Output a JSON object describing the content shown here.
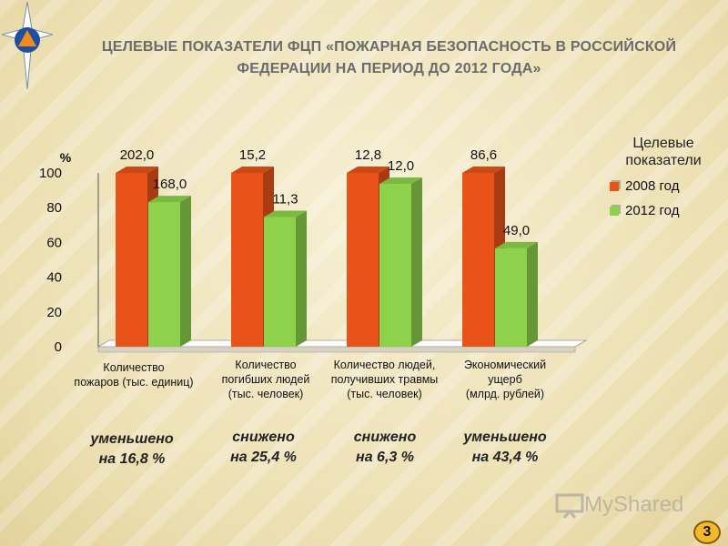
{
  "header": {
    "title_line1": "ЦЕЛЕВЫЕ ПОКАЗАТЕЛИ ФЦП «ПОЖАРНАЯ БЕЗОПАСНОСТЬ В РОССИЙСКОЙ",
    "title_line2": "ФЕДЕРАЦИИ НА ПЕРИОД  ДО 2012 ГОДА»"
  },
  "chart_data": {
    "type": "bar",
    "ylabel": "%",
    "ylim": [
      0,
      100
    ],
    "yticks": [
      "0",
      "20",
      "40",
      "60",
      "80",
      "100"
    ],
    "categories": [
      "Количество пожаров (тыс. единиц)",
      "Количество погибших людей (тыс. человек)",
      "Количество людей, получивших травмы (тыс. человек)",
      "Экономический ущерб (млрд. рублей)"
    ],
    "series": [
      {
        "name": "2008 год",
        "color": "#e8531a",
        "values": [
          100,
          100,
          100,
          100
        ],
        "labels": [
          "202,0",
          "15,2",
          "12,8",
          "86,6"
        ]
      },
      {
        "name": "2012 год",
        "color": "#8ed24b",
        "values": [
          83.2,
          74.6,
          93.7,
          56.6
        ],
        "labels": [
          "168,0",
          "11,3",
          "12,0",
          "49,0"
        ]
      }
    ],
    "legend_title": "Целевые показатели",
    "legend_position": "right"
  },
  "categories_display": [
    {
      "line1": "Количество",
      "line2": "пожаров (тыс. единиц)",
      "line3": ""
    },
    {
      "line1": "Количество",
      "line2": "погибших людей",
      "line3": "(тыс. человек)"
    },
    {
      "line1": "Количество людей,",
      "line2": "получивших травмы",
      "line3": "(тыс. человек)"
    },
    {
      "line1": "Экономический",
      "line2": "ущерб",
      "line3": "(млрд. рублей)"
    }
  ],
  "notes": [
    {
      "line1": "уменьшено",
      "line2": "на 16,8 %"
    },
    {
      "line1": "снижено",
      "line2": "на 25,4 %"
    },
    {
      "line1": "снижено",
      "line2": "на 6,3 %"
    },
    {
      "line1": "уменьшено",
      "line2": "на 43,4 %"
    }
  ],
  "watermark": "MyShared",
  "page_number": "3"
}
